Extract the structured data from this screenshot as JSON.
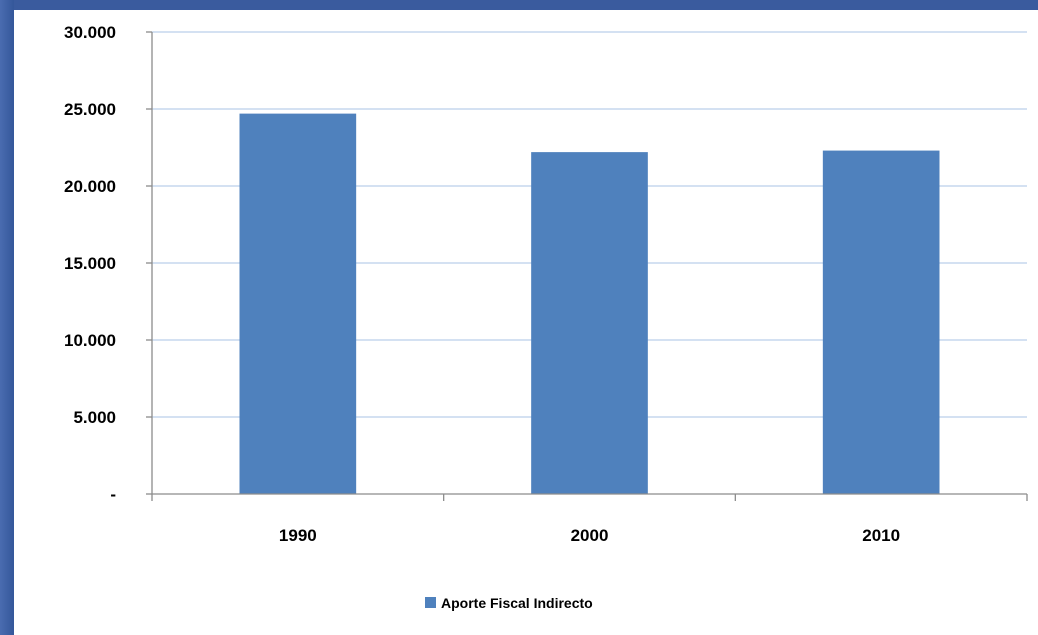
{
  "chart_data": {
    "type": "bar",
    "title": "",
    "xlabel": "",
    "ylabel": "",
    "categories": [
      "1990",
      "2000",
      "2010"
    ],
    "series": [
      {
        "name": "Aporte Fiscal Indirecto",
        "values": [
          24700,
          22200,
          22300
        ],
        "color": "#4f81bd"
      }
    ],
    "ylim": [
      0,
      30000
    ],
    "yticks": [
      0,
      5000,
      10000,
      15000,
      20000,
      25000,
      30000
    ],
    "ytick_labels": [
      "-",
      "5.000",
      "10.000",
      "15.000",
      "20.000",
      "25.000",
      "30.000"
    ],
    "grid": true,
    "grid_color": "#c5d7ee",
    "legend_position": "bottom"
  }
}
